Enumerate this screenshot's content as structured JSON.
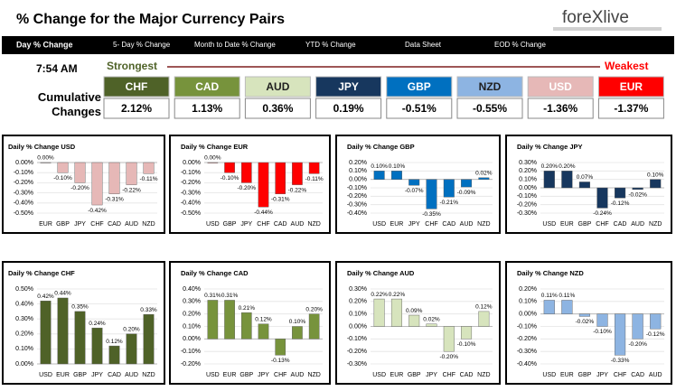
{
  "header": {
    "title": "% Change for the Major Currency Pairs",
    "logo": "foreXlive"
  },
  "nav": {
    "items": [
      "Day % Change",
      "5- Day % Change",
      "Month to Date % Change",
      "YTD % Change",
      "Data Sheet",
      "EOD % Change"
    ]
  },
  "summary": {
    "time": "7:54 AM",
    "strongest": "Strongest",
    "weakest": "Weakest",
    "row_label": "Cumulative Changes",
    "currencies": [
      {
        "code": "CHF",
        "change": "2.12%",
        "color": "#4f6228",
        "text_color": "#ffffff"
      },
      {
        "code": "CAD",
        "change": "1.13%",
        "color": "#77933c",
        "text_color": "#ffffff"
      },
      {
        "code": "AUD",
        "change": "0.36%",
        "color": "#d7e4bd",
        "text_color": "#1f1f1f"
      },
      {
        "code": "JPY",
        "change": "0.19%",
        "color": "#17375e",
        "text_color": "#ffffff"
      },
      {
        "code": "GBP",
        "change": "-0.51%",
        "color": "#0070c0",
        "text_color": "#ffffff"
      },
      {
        "code": "NZD",
        "change": "-0.55%",
        "color": "#8db4e2",
        "text_color": "#1f1f1f"
      },
      {
        "code": "USD",
        "change": "-1.36%",
        "color": "#e6b8b7",
        "text_color": "#ffffff"
      },
      {
        "code": "EUR",
        "change": "-1.37%",
        "color": "#ff0000",
        "text_color": "#ffffff"
      }
    ]
  },
  "chart_data": [
    {
      "type": "bar",
      "title": "Daily % Change USD",
      "color": "#e6b8b7",
      "grid": true,
      "categories": [
        "EUR",
        "GBP",
        "JPY",
        "CHF",
        "CAD",
        "AUD",
        "NZD"
      ],
      "values": [
        0.0,
        -0.1,
        -0.2,
        -0.42,
        -0.31,
        -0.22,
        -0.11
      ],
      "value_labels": [
        "0.00%",
        "-0.10%",
        "-0.20%",
        "-0.42%",
        "-0.31%",
        "-0.22%",
        "-0.11%"
      ],
      "ylim": [
        -0.5,
        0
      ],
      "yticks": [
        {
          "value": 0,
          "label": "0.00%"
        },
        {
          "value": -0.1,
          "label": "-0.10%"
        },
        {
          "value": -0.2,
          "label": "-0.20%"
        },
        {
          "value": -0.3,
          "label": "-0.30%"
        },
        {
          "value": -0.4,
          "label": "-0.40%"
        },
        {
          "value": -0.5,
          "label": "-0.50%"
        }
      ]
    },
    {
      "type": "bar",
      "title": "Daily % Change EUR",
      "color": "#ff0000",
      "grid": true,
      "categories": [
        "USD",
        "GBP",
        "JPY",
        "CHF",
        "CAD",
        "AUD",
        "NZD"
      ],
      "values": [
        0.0,
        -0.1,
        -0.2,
        -0.44,
        -0.31,
        -0.22,
        -0.11
      ],
      "value_labels": [
        "0.00%",
        "-0.10%",
        "-0.20%",
        "-0.44%",
        "-0.31%",
        "-0.22%",
        "-0.11%"
      ],
      "ylim": [
        -0.5,
        0
      ],
      "yticks": [
        {
          "value": 0,
          "label": "0.00%"
        },
        {
          "value": -0.1,
          "label": "-0.10%"
        },
        {
          "value": -0.2,
          "label": "-0.20%"
        },
        {
          "value": -0.3,
          "label": "-0.30%"
        },
        {
          "value": -0.4,
          "label": "-0.40%"
        },
        {
          "value": -0.5,
          "label": "-0.50%"
        }
      ]
    },
    {
      "type": "bar",
      "title": "Daily % Change GBP",
      "color": "#0070c0",
      "grid": true,
      "categories": [
        "USD",
        "EUR",
        "JPY",
        "CHF",
        "CAD",
        "AUD",
        "NZD"
      ],
      "values": [
        0.1,
        0.1,
        -0.07,
        -0.35,
        -0.21,
        -0.09,
        0.02
      ],
      "value_labels": [
        "0.10%",
        "0.10%",
        "-0.07%",
        "-0.35%",
        "-0.21%",
        "-0.09%",
        "0.02%"
      ],
      "ylim": [
        -0.4,
        0.2
      ],
      "yticks": [
        {
          "value": 0.2,
          "label": "0.20%"
        },
        {
          "value": 0.1,
          "label": "0.10%"
        },
        {
          "value": 0,
          "label": "0.00%"
        },
        {
          "value": -0.1,
          "label": "-0.10%"
        },
        {
          "value": -0.2,
          "label": "-0.20%"
        },
        {
          "value": -0.3,
          "label": "-0.30%"
        },
        {
          "value": -0.4,
          "label": "-0.40%"
        }
      ]
    },
    {
      "type": "bar",
      "title": "Daily % Change JPY",
      "color": "#17375e",
      "grid": true,
      "categories": [
        "USD",
        "EUR",
        "GBP",
        "CHF",
        "CAD",
        "AUD",
        "NZD"
      ],
      "values": [
        0.2,
        0.2,
        0.07,
        -0.24,
        -0.12,
        -0.02,
        0.1
      ],
      "value_labels": [
        "0.20%",
        "0.20%",
        "0.07%",
        "-0.24%",
        "-0.12%",
        "-0.02%",
        "0.10%"
      ],
      "ylim": [
        -0.3,
        0.3
      ],
      "yticks": [
        {
          "value": 0.3,
          "label": "0.30%"
        },
        {
          "value": 0.2,
          "label": "0.20%"
        },
        {
          "value": 0.1,
          "label": "0.10%"
        },
        {
          "value": 0,
          "label": "0.00%"
        },
        {
          "value": -0.1,
          "label": "-0.10%"
        },
        {
          "value": -0.2,
          "label": "-0.20%"
        },
        {
          "value": -0.3,
          "label": "-0.30%"
        }
      ]
    },
    {
      "type": "bar",
      "title": "Daily % Change CHF",
      "color": "#4f6228",
      "grid": true,
      "categories": [
        "USD",
        "EUR",
        "GBP",
        "JPY",
        "CAD",
        "AUD",
        "NZD"
      ],
      "values": [
        0.42,
        0.44,
        0.35,
        0.24,
        0.12,
        0.2,
        0.33
      ],
      "value_labels": [
        "0.42%",
        "0.44%",
        "0.35%",
        "0.24%",
        "0.12%",
        "0.20%",
        "0.33%"
      ],
      "ylim": [
        0,
        0.5
      ],
      "yticks": [
        {
          "value": 0.5,
          "label": "0.50%"
        },
        {
          "value": 0.4,
          "label": "0.40%"
        },
        {
          "value": 0.3,
          "label": "0.30%"
        },
        {
          "value": 0.2,
          "label": "0.20%"
        },
        {
          "value": 0.1,
          "label": "0.10%"
        },
        {
          "value": 0,
          "label": "0.00%"
        }
      ]
    },
    {
      "type": "bar",
      "title": "Daily % Change CAD",
      "color": "#77933c",
      "grid": true,
      "categories": [
        "USD",
        "EUR",
        "GBP",
        "JPY",
        "CHF",
        "AUD",
        "NZD"
      ],
      "values": [
        0.31,
        0.31,
        0.21,
        0.12,
        -0.13,
        0.1,
        0.2
      ],
      "value_labels": [
        "0.31%",
        "0.31%",
        "0.21%",
        "0.12%",
        "-0.13%",
        "0.10%",
        "0.20%"
      ],
      "ylim": [
        -0.2,
        0.4
      ],
      "yticks": [
        {
          "value": 0.4,
          "label": "0.40%"
        },
        {
          "value": 0.3,
          "label": "0.30%"
        },
        {
          "value": 0.2,
          "label": "0.20%"
        },
        {
          "value": 0.1,
          "label": "0.10%"
        },
        {
          "value": 0,
          "label": "0.00%"
        },
        {
          "value": -0.1,
          "label": "-0.10%"
        },
        {
          "value": -0.2,
          "label": "-0.20%"
        }
      ]
    },
    {
      "type": "bar",
      "title": "Daily % Change AUD",
      "color": "#d7e4bd",
      "grid": true,
      "categories": [
        "USD",
        "EUR",
        "GBP",
        "JPY",
        "CHF",
        "CAD",
        "NZD"
      ],
      "values": [
        0.22,
        0.22,
        0.09,
        0.02,
        -0.2,
        -0.1,
        0.12
      ],
      "value_labels": [
        "0.22%",
        "0.22%",
        "0.09%",
        "0.02%",
        "-0.20%",
        "-0.10%",
        "0.12%"
      ],
      "ylim": [
        -0.3,
        0.3
      ],
      "yticks": [
        {
          "value": 0.3,
          "label": "0.30%"
        },
        {
          "value": 0.2,
          "label": "0.20%"
        },
        {
          "value": 0.1,
          "label": "0.10%"
        },
        {
          "value": 0,
          "label": "0.00%"
        },
        {
          "value": -0.1,
          "label": "-0.10%"
        },
        {
          "value": -0.2,
          "label": "-0.20%"
        },
        {
          "value": -0.3,
          "label": "-0.30%"
        }
      ]
    },
    {
      "type": "bar",
      "title": "Daily % Change NZD",
      "color": "#8db4e2",
      "grid": true,
      "categories": [
        "USD",
        "EUR",
        "GBP",
        "JPY",
        "CHF",
        "CAD",
        "AUD"
      ],
      "values": [
        0.11,
        0.11,
        -0.02,
        -0.1,
        -0.33,
        -0.2,
        -0.12
      ],
      "value_labels": [
        "0.11%",
        "0.11%",
        "-0.02%",
        "-0.10%",
        "-0.33%",
        "-0.20%",
        "-0.12%"
      ],
      "ylim": [
        -0.4,
        0.2
      ],
      "yticks": [
        {
          "value": 0.2,
          "label": "0.20%"
        },
        {
          "value": 0.1,
          "label": "0.10%"
        },
        {
          "value": 0,
          "label": "0.00%"
        },
        {
          "value": -0.1,
          "label": "-0.10%"
        },
        {
          "value": -0.2,
          "label": "-0.20%"
        },
        {
          "value": -0.3,
          "label": "-0.30%"
        },
        {
          "value": -0.4,
          "label": "-0.40%"
        }
      ]
    }
  ]
}
